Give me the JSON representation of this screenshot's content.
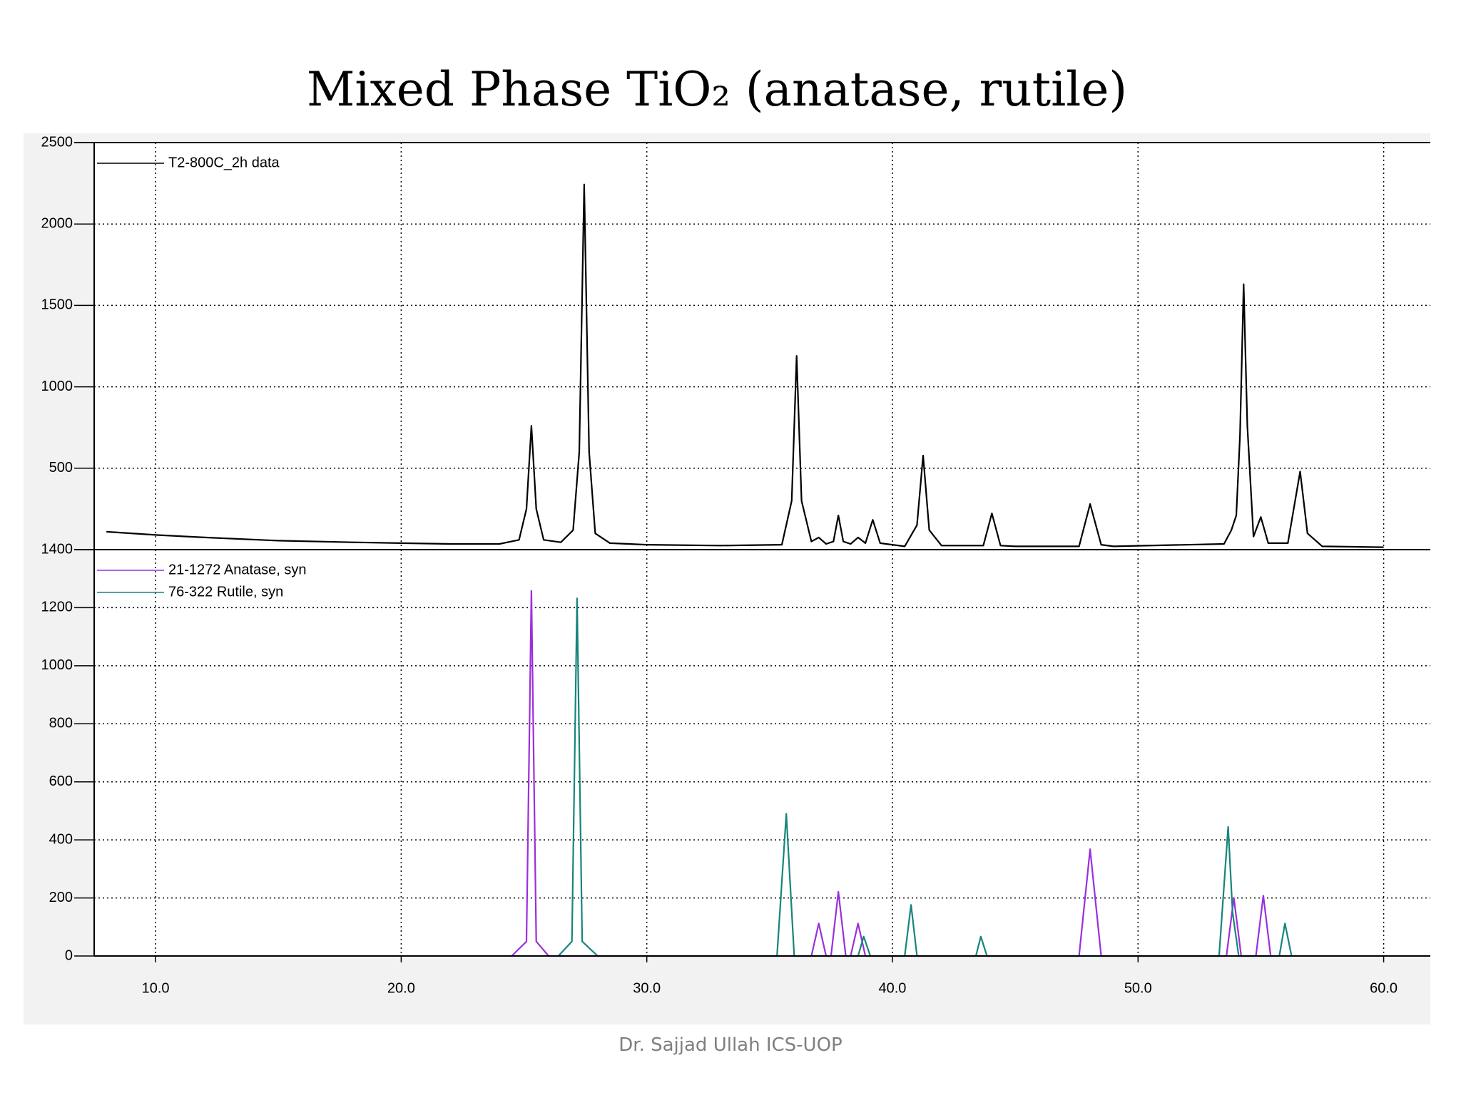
{
  "chart_data": [
    {
      "type": "line",
      "title": "Mixed Phase TiO₂ (anatase, rutile)",
      "ylim": [
        0,
        2500
      ],
      "yticks": [
        500,
        1000,
        1500,
        2000,
        2500
      ],
      "grid": true,
      "legend": "upper left",
      "series": [
        {
          "name": "T2-800C_2h data",
          "color": "#000000",
          "x": [
            8.0,
            10,
            12,
            15,
            18,
            20,
            22,
            24,
            24.8,
            25.1,
            25.3,
            25.5,
            25.8,
            26.5,
            27.0,
            27.25,
            27.45,
            27.65,
            27.9,
            28.5,
            30,
            33,
            35.5,
            35.9,
            36.1,
            36.3,
            36.7,
            37.0,
            37.3,
            37.6,
            37.8,
            38.0,
            38.3,
            38.6,
            38.9,
            39.2,
            39.5,
            40.5,
            41.0,
            41.25,
            41.5,
            42,
            43.7,
            44.05,
            44.4,
            45,
            47.6,
            48.05,
            48.5,
            49,
            53.5,
            53.8,
            54.0,
            54.15,
            54.3,
            54.45,
            54.7,
            55.0,
            55.3,
            56.1,
            56.6,
            56.9,
            57.5,
            60.0
          ],
          "values": [
            110,
            90,
            75,
            55,
            45,
            40,
            35,
            35,
            60,
            250,
            761,
            250,
            60,
            45,
            120,
            600,
            2243,
            600,
            100,
            40,
            30,
            25,
            30,
            300,
            1190,
            300,
            50,
            75,
            35,
            50,
            210,
            50,
            35,
            75,
            40,
            183,
            40,
            20,
            150,
            578,
            120,
            25,
            25,
            223,
            25,
            20,
            20,
            280,
            30,
            20,
            35,
            120,
            210,
            700,
            1630,
            760,
            80,
            200,
            40,
            40,
            480,
            100,
            20,
            15
          ]
        }
      ]
    },
    {
      "type": "line",
      "xlim": [
        7.5,
        61.9
      ],
      "xticks": [
        {
          "value": 10,
          "label": "10.0"
        },
        {
          "value": 20,
          "label": "20.0"
        },
        {
          "value": 30,
          "label": "30.0"
        },
        {
          "value": 40,
          "label": "40.0"
        },
        {
          "value": 50,
          "label": "50.0"
        },
        {
          "value": 60,
          "label": "60.0"
        }
      ],
      "ylim": [
        0,
        1400
      ],
      "yticks": [
        0,
        200,
        400,
        600,
        800,
        1000,
        1200,
        1400
      ],
      "grid": true,
      "legend": "upper left",
      "series": [
        {
          "name": "21-1272 Anatase, syn",
          "color": "#9b2fdc",
          "x": [
            24.5,
            25.1,
            25.3,
            25.5,
            26.0,
            36.7,
            37.0,
            37.3,
            37.5,
            37.8,
            38.1,
            38.3,
            38.6,
            38.9,
            47.6,
            48.05,
            48.5,
            53.6,
            53.9,
            54.2,
            54.8,
            55.1,
            55.4
          ],
          "values": [
            0,
            50,
            1258,
            50,
            0,
            0,
            112,
            0,
            0,
            221,
            0,
            0,
            112,
            0,
            0,
            368,
            0,
            0,
            200,
            0,
            0,
            208,
            0
          ]
        },
        {
          "name": "76-322 Rutile, syn",
          "color": "#16857c",
          "x": [
            26.4,
            26.95,
            27.16,
            27.37,
            28.0,
            35.3,
            35.68,
            36.0,
            38.6,
            38.83,
            39.1,
            40.5,
            40.76,
            41.0,
            43.4,
            43.6,
            43.85,
            53.3,
            53.67,
            53.85,
            54.1,
            55.75,
            55.98,
            56.25
          ],
          "values": [
            0,
            50,
            1232,
            50,
            0,
            0,
            490,
            0,
            0,
            67,
            0,
            0,
            176,
            0,
            0,
            67,
            0,
            0,
            445,
            150,
            0,
            0,
            112,
            0
          ]
        }
      ]
    }
  ],
  "footer": "Dr. Sajjad Ullah ICS-UOP"
}
